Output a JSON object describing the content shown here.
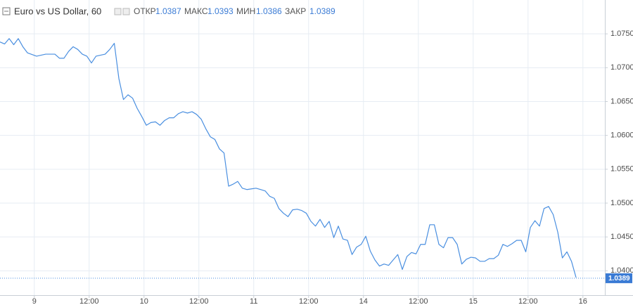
{
  "header": {
    "title": "Euro vs US Dollar, 60",
    "open_label": "ОТКР",
    "open": "1.0387",
    "high_label": "МАКС",
    "high": "1.0393",
    "low_label": "МИН",
    "low": "1.0386",
    "close_label": "ЗАКР",
    "close": "1.0389"
  },
  "chart_data": {
    "type": "line",
    "x": [
      0,
      1,
      2,
      3,
      4,
      5,
      6,
      8,
      10,
      12,
      13,
      14,
      15,
      16,
      17,
      18,
      19,
      20,
      21,
      23,
      24,
      25,
      26,
      27,
      28,
      29,
      30,
      31,
      32,
      33,
      34,
      35,
      36,
      37,
      38,
      39,
      40,
      41,
      42,
      43,
      44,
      45,
      46,
      47,
      48,
      49,
      50,
      51,
      52,
      53,
      54,
      55,
      56,
      57,
      58,
      59,
      60,
      61,
      62,
      63,
      64,
      65,
      66,
      67,
      68,
      69,
      70,
      71,
      72,
      73,
      74,
      75,
      76,
      77,
      78,
      79,
      80,
      81,
      82,
      83,
      84,
      85,
      86,
      87,
      88,
      89,
      90,
      91,
      92,
      93,
      94,
      95,
      96,
      97,
      98,
      99,
      100,
      101,
      102,
      103,
      104,
      105,
      106,
      107,
      108,
      109,
      110,
      111,
      112,
      113,
      114,
      115,
      116,
      117,
      118,
      119,
      120,
      121,
      122,
      123,
      124,
      125,
      126
    ],
    "series": [
      {
        "color": "#4a8fe0",
        "values": [
          1.0738,
          1.0735,
          1.0743,
          1.0734,
          1.0743,
          1.0731,
          1.0722,
          1.0717,
          1.072,
          1.072,
          1.0714,
          1.0714,
          1.0724,
          1.0731,
          1.0727,
          1.072,
          1.0717,
          1.0707,
          1.0717,
          1.072,
          1.0727,
          1.0736,
          1.0684,
          1.0653,
          1.066,
          1.0655,
          1.064,
          1.0628,
          1.0615,
          1.0619,
          1.062,
          1.0615,
          1.0622,
          1.0626,
          1.0626,
          1.0632,
          1.0635,
          1.0633,
          1.0635,
          1.0631,
          1.0624,
          1.061,
          1.0598,
          1.0594,
          1.058,
          1.0574,
          1.0525,
          1.0528,
          1.0532,
          1.0522,
          1.052,
          1.0521,
          1.0522,
          1.052,
          1.0518,
          1.051,
          1.0507,
          1.0492,
          1.0485,
          1.048,
          1.049,
          1.0491,
          1.0489,
          1.0485,
          1.0473,
          1.0466,
          1.0476,
          1.0464,
          1.0473,
          1.0449,
          1.0466,
          1.0447,
          1.0445,
          1.0424,
          1.0435,
          1.0439,
          1.0451,
          1.0429,
          1.0416,
          1.0407,
          1.041,
          1.0408,
          1.0416,
          1.0424,
          1.0402,
          1.0421,
          1.0427,
          1.0425,
          1.0439,
          1.0439,
          1.0468,
          1.0468,
          1.0439,
          1.0434,
          1.0449,
          1.0449,
          1.0439,
          1.041,
          1.0417,
          1.042,
          1.0419,
          1.0414,
          1.0414,
          1.0418,
          1.0418,
          1.0423,
          1.0439,
          1.0436,
          1.044,
          1.0445,
          1.0445,
          1.0428,
          1.0464,
          1.0474,
          1.0466,
          1.0492,
          1.0495,
          1.0483,
          1.0457,
          1.0419,
          1.0428,
          1.0414,
          1.039
        ]
      }
    ],
    "last_price": 1.0389,
    "xlim": [
      0,
      132.3
    ],
    "xticks": [
      {
        "value": 7.5,
        "label": "9"
      },
      {
        "value": 19.5,
        "label": "12:00"
      },
      {
        "value": 31.5,
        "label": "10"
      },
      {
        "value": 43.5,
        "label": "12:00"
      },
      {
        "value": 55.5,
        "label": "11"
      },
      {
        "value": 67.5,
        "label": "12:00"
      },
      {
        "value": 79.5,
        "label": "14"
      },
      {
        "value": 91.5,
        "label": "12:00"
      },
      {
        "value": 103.5,
        "label": "15"
      },
      {
        "value": 115.5,
        "label": "12:00"
      },
      {
        "value": 127.5,
        "label": "16"
      }
    ],
    "ylim": [
      1.0364,
      1.08
    ],
    "yticks": [
      {
        "value": 1.04,
        "label": "1.0400"
      },
      {
        "value": 1.045,
        "label": "1.0450"
      },
      {
        "value": 1.05,
        "label": "1.0500"
      },
      {
        "value": 1.055,
        "label": "1.0550"
      },
      {
        "value": 1.06,
        "label": "1.0600"
      },
      {
        "value": 1.065,
        "label": "1.0650"
      },
      {
        "value": 1.07,
        "label": "1.0700"
      },
      {
        "value": 1.075,
        "label": "1.0750"
      }
    ],
    "grid": true
  }
}
